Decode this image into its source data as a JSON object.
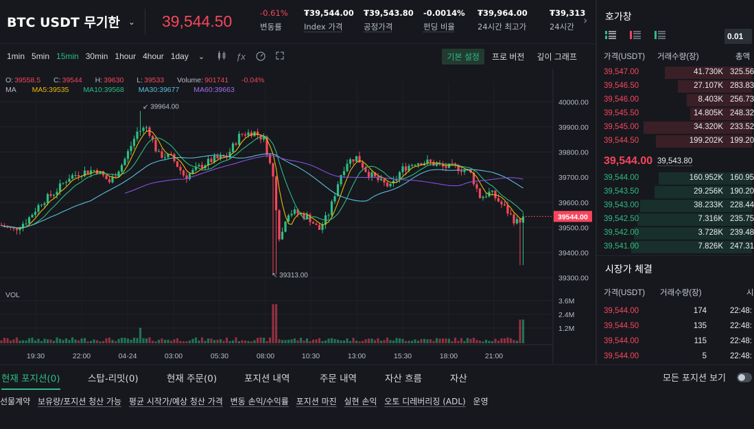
{
  "header": {
    "symbol": "BTC USDT 무기한",
    "last_price": "39,544.50",
    "stats": [
      {
        "value": "-0.61%",
        "label": "변동률"
      },
      {
        "value": "₮39,544.00",
        "label": "Index 가격"
      },
      {
        "value": "₮39,543.80",
        "label": "공정가격"
      },
      {
        "value": "-0.0014%",
        "label": "펀딩 비율"
      },
      {
        "value": "₮39,964.00",
        "label": "24시간 최고가"
      },
      {
        "value": "₮39,313",
        "label": "24시간"
      }
    ]
  },
  "toolbar": {
    "timeframes": [
      "1min",
      "5min",
      "15min",
      "30min",
      "1hour",
      "4hour",
      "1day"
    ],
    "active_timeframe": "15min",
    "views": [
      "기본 설정",
      "프로 버전",
      "깊이 그래프"
    ]
  },
  "legend": {
    "open_label": "O:",
    "open": "39558.5",
    "close_label": "C:",
    "close": "39544",
    "high_label": "H:",
    "high": "39630",
    "low_label": "L:",
    "low": "39533",
    "volume_label": "Volume:",
    "volume": "901741",
    "change": "-0.04%",
    "ma_label": "MA",
    "ma5": "MA5:39535",
    "ma10": "MA10:39568",
    "ma30": "MA30:39677",
    "ma60": "MA60:39663",
    "vol_label": "VOL"
  },
  "colors": {
    "up": "#2ebd85",
    "down": "#f6465d",
    "ma5": "#f0b90b",
    "ma10": "#2ebd85",
    "ma30": "#5bc0de",
    "ma60": "#8a4fe0"
  },
  "chart_data": {
    "type": "candlestick",
    "price_ticks": [
      "40000.00",
      "39900.00",
      "39800.00",
      "39700.00",
      "39600.00",
      "39500.00",
      "39400.00",
      "39300.00"
    ],
    "volume_ticks": [
      "3.6M",
      "2.4M",
      "1.2M"
    ],
    "time_ticks": [
      "19:30",
      "22:00",
      "04-24",
      "03:00",
      "05:30",
      "08:00",
      "10:30",
      "13:00",
      "15:30",
      "18:00",
      "21:00"
    ],
    "high_marker": "39964.00",
    "low_marker": "39313.00",
    "current_price": "39544.00",
    "ylim": [
      39280,
      40050
    ]
  },
  "orderbook": {
    "title": "호가창",
    "precision": "0.01",
    "col_price": "가격(USDT)",
    "col_qty": "거래수량(장)",
    "col_total": "총액",
    "asks": [
      {
        "price": "39,547.00",
        "qty": "41.730K",
        "total": "325.56",
        "depth": 0.56
      },
      {
        "price": "39,546.50",
        "qty": "27.107K",
        "total": "283.83",
        "depth": 0.48
      },
      {
        "price": "39,546.00",
        "qty": "8.403K",
        "total": "256.73",
        "depth": 0.42
      },
      {
        "price": "39,545.50",
        "qty": "14.805K",
        "total": "248.32",
        "depth": 0.4
      },
      {
        "price": "39,545.00",
        "qty": "34.320K",
        "total": "233.52",
        "depth": 0.7
      },
      {
        "price": "39,544.50",
        "qty": "199.202K",
        "total": "199.20",
        "depth": 0.62
      }
    ],
    "mid_price": "39,544.00",
    "mid_index": "39,543.80",
    "bids": [
      {
        "price": "39,544.00",
        "qty": "160.952K",
        "total": "160.95",
        "depth": 0.6
      },
      {
        "price": "39,543.50",
        "qty": "29.256K",
        "total": "190.20",
        "depth": 0.63
      },
      {
        "price": "39,543.00",
        "qty": "38.233K",
        "total": "228.44",
        "depth": 0.72
      },
      {
        "price": "39,542.50",
        "qty": "7.316K",
        "total": "235.75",
        "depth": 0.74
      },
      {
        "price": "39,542.00",
        "qty": "3.728K",
        "total": "239.48",
        "depth": 0.76
      },
      {
        "price": "39,541.00",
        "qty": "7.826K",
        "total": "247.31",
        "depth": 0.78
      }
    ]
  },
  "trades": {
    "title": "시장가 체결",
    "col_price": "가격(USDT)",
    "col_qty": "거래수량(장)",
    "col_time": "시",
    "rows": [
      {
        "price": "39,544.00",
        "qty": "174",
        "time": "22:48:"
      },
      {
        "price": "39,544.50",
        "qty": "135",
        "time": "22:48:"
      },
      {
        "price": "39,544.00",
        "qty": "115",
        "time": "22:48:"
      },
      {
        "price": "39,544.00",
        "qty": "5",
        "time": "22:48:"
      }
    ]
  },
  "bottom": {
    "tabs": [
      "현재 포지션(0)",
      "스탑-리밋(0)",
      "현재 주문(0)",
      "포지션 내역",
      "주문 내역",
      "자산 흐름",
      "자산"
    ],
    "show_all": "모든 포지션 보기",
    "columns": [
      "선물계약",
      "보유량/포지션 청산 가능",
      "평균 시작가/예상 청산 가격",
      "변동 손익/수익률",
      "포지션 마진",
      "실현 손익",
      "오토 디레버리징 (ADL)",
      "운영"
    ]
  }
}
